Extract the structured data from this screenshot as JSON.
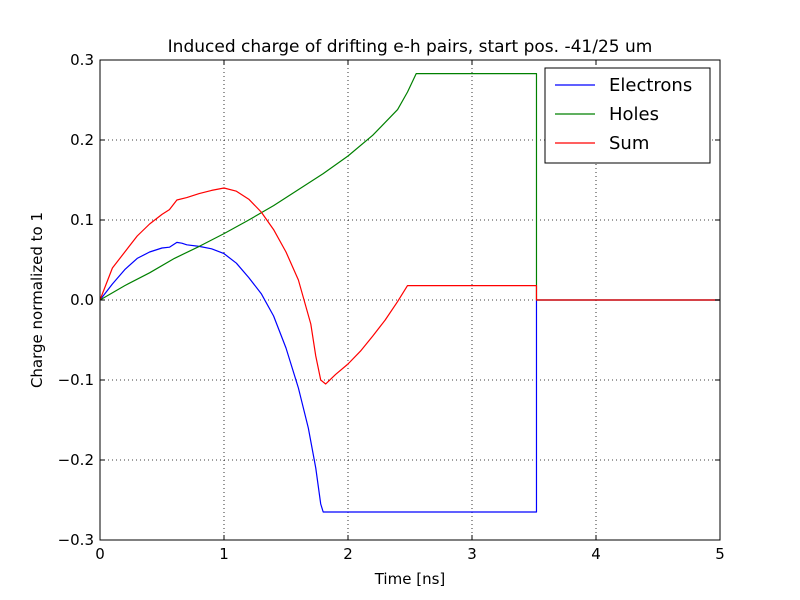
{
  "chart_data": {
    "type": "line",
    "title": "Induced charge of drifting e-h pairs, start pos. -41/25 um",
    "xlabel": "Time [ns]",
    "ylabel": "Charge normalized to 1",
    "xlim": [
      0,
      5
    ],
    "ylim": [
      -0.3,
      0.3
    ],
    "xticks": [
      0,
      1,
      2,
      3,
      4,
      5
    ],
    "xtick_labels": [
      "0",
      "1",
      "2",
      "3",
      "4",
      "5"
    ],
    "yticks": [
      -0.3,
      -0.2,
      -0.1,
      0.0,
      0.1,
      0.2,
      0.3
    ],
    "ytick_labels": [
      "−0.3",
      "−0.2",
      "−0.1",
      "0.0",
      "0.1",
      "0.2",
      "0.3"
    ],
    "grid": true,
    "legend_position": "top-right",
    "series": [
      {
        "name": "Electrons",
        "color": "#0000ff",
        "x": [
          0,
          0.1,
          0.2,
          0.3,
          0.4,
          0.5,
          0.56,
          0.62,
          0.66,
          0.7,
          0.8,
          0.9,
          1.0,
          1.1,
          1.2,
          1.3,
          1.4,
          1.5,
          1.6,
          1.68,
          1.74,
          1.78,
          1.8,
          1.82,
          3.52,
          3.52,
          5.0
        ],
        "y": [
          0,
          0.02,
          0.038,
          0.052,
          0.06,
          0.065,
          0.066,
          0.072,
          0.071,
          0.069,
          0.067,
          0.064,
          0.058,
          0.046,
          0.028,
          0.008,
          -0.02,
          -0.06,
          -0.11,
          -0.16,
          -0.21,
          -0.255,
          -0.265,
          -0.265,
          -0.265,
          0.0,
          0.0
        ]
      },
      {
        "name": "Holes",
        "color": "#008000",
        "x": [
          0,
          0.2,
          0.4,
          0.6,
          0.8,
          1.0,
          1.2,
          1.4,
          1.6,
          1.8,
          2.0,
          2.2,
          2.4,
          2.48,
          2.55,
          3.52,
          3.52,
          5.0
        ],
        "y": [
          0,
          0.018,
          0.034,
          0.052,
          0.067,
          0.083,
          0.1,
          0.118,
          0.138,
          0.158,
          0.18,
          0.206,
          0.238,
          0.26,
          0.283,
          0.283,
          0.0,
          0.0
        ]
      },
      {
        "name": "Sum",
        "color": "#ff0000",
        "x": [
          0,
          0.1,
          0.2,
          0.3,
          0.4,
          0.5,
          0.56,
          0.62,
          0.7,
          0.8,
          0.9,
          1.0,
          1.1,
          1.2,
          1.3,
          1.4,
          1.5,
          1.6,
          1.7,
          1.74,
          1.78,
          1.82,
          1.9,
          2.0,
          2.1,
          2.2,
          2.3,
          2.4,
          2.48,
          2.55,
          3.52,
          3.52,
          5.0
        ],
        "y": [
          0,
          0.04,
          0.06,
          0.08,
          0.095,
          0.107,
          0.113,
          0.125,
          0.128,
          0.133,
          0.137,
          0.14,
          0.136,
          0.126,
          0.11,
          0.088,
          0.06,
          0.025,
          -0.03,
          -0.07,
          -0.1,
          -0.105,
          -0.093,
          -0.08,
          -0.064,
          -0.045,
          -0.025,
          -0.002,
          0.018,
          0.018,
          0.018,
          0.0,
          0.0
        ]
      }
    ]
  }
}
